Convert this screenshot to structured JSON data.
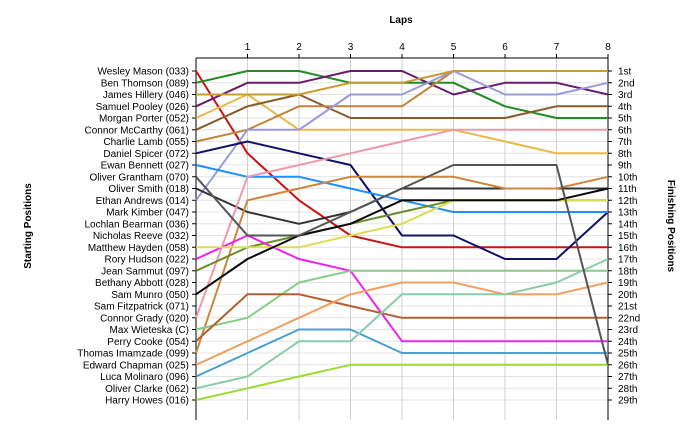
{
  "chart_data": {
    "type": "line",
    "title": "",
    "xlabel": "Laps",
    "ylabel_left": "Starting Positions",
    "ylabel_right": "Finishing Positions",
    "laps": [
      0,
      1,
      2,
      3,
      4,
      5,
      6,
      7,
      8
    ],
    "lap_labels": [
      "1",
      "2",
      "3",
      "4",
      "5",
      "6",
      "7",
      "8"
    ],
    "drivers": [
      "Wesley Mason (033)",
      "Ben Thomson (089)",
      "James Hillery (046)",
      "Samuel Pooley (026)",
      "Morgan Porter (052)",
      "Connor McCarthy (061)",
      "Charlie Lamb (055)",
      "Daniel Spicer (072)",
      "Ewan Bennett (027)",
      "Oliver Grantham (070)",
      "Oliver Smith (018)",
      "Ethan Andrews (014)",
      "Mark Kimber (047)",
      "Lochlan Bearman (036)",
      "Nicholas Reeve (032)",
      "Matthew Hayden (058)",
      "Rory Hudson (022)",
      "Jean Sammut (097)",
      "Bethany Abbott (028)",
      "Sam Munro (050)",
      "Sam Fitzpatrick (071)",
      "Connor Grady (020)",
      "Max Wieteska (C)",
      "Perry Cooke (054)",
      "Thomas Imamzade (099)",
      "Edward Chapman (025)",
      "Luca Molinaro (096)",
      "Oliver Clarke (062)",
      "Harry Howes (016)"
    ],
    "finishing_positions": [
      "1st",
      "2nd",
      "3rd",
      "4th",
      "5th",
      "6th",
      "7th",
      "8th",
      "9th",
      "10th",
      "11th",
      "12th",
      "13th",
      "14th",
      "15th",
      "16th",
      "17th",
      "18th",
      "19th",
      "20th",
      "21st",
      "22nd",
      "23rd",
      "24th",
      "25th",
      "26th",
      "27th",
      "28th",
      "29th"
    ],
    "series": [
      {
        "color": "#cc1111",
        "positions": [
          1,
          8,
          12,
          15,
          16,
          16,
          16,
          16,
          16
        ]
      },
      {
        "color": "#228b22",
        "positions": [
          2,
          1,
          1,
          2,
          2,
          2,
          4,
          5,
          5
        ]
      },
      {
        "color": "#6a1b6a",
        "positions": [
          4,
          2,
          2,
          1,
          1,
          3,
          2,
          2,
          3
        ]
      },
      {
        "color": "#e8b84a",
        "positions": [
          5,
          3,
          6,
          6,
          6,
          6,
          7,
          8,
          8
        ]
      },
      {
        "color": "#8b5a2b",
        "positions": [
          6,
          4,
          3,
          5,
          5,
          5,
          5,
          4,
          4
        ]
      },
      {
        "color": "#c0843a",
        "positions": [
          7,
          6,
          4,
          4,
          4,
          1,
          1,
          1,
          1
        ]
      },
      {
        "color": "#9999dd",
        "positions": [
          12,
          6,
          6,
          3,
          3,
          1,
          3,
          3,
          2
        ]
      },
      {
        "color": "#111166",
        "positions": [
          8,
          7,
          8,
          9,
          15,
          15,
          17,
          17,
          13
        ]
      },
      {
        "color": "#1e90ff",
        "positions": [
          9,
          10,
          10,
          11,
          12,
          13,
          13,
          13,
          13
        ]
      },
      {
        "color": "#333333",
        "positions": [
          11,
          13,
          14,
          13,
          11,
          11,
          11,
          11,
          11
        ]
      },
      {
        "color": "#ee99aa",
        "positions": [
          22,
          10,
          9,
          8,
          7,
          6,
          6,
          6,
          6
        ]
      },
      {
        "color": "#cd853f",
        "positions": [
          25,
          12,
          11,
          10,
          10,
          10,
          11,
          11,
          10
        ]
      },
      {
        "color": "#6a8f2a",
        "positions": [
          18,
          16,
          15,
          14,
          13,
          12,
          12,
          12,
          12
        ]
      },
      {
        "color": "#ee22ee",
        "positions": [
          17,
          15,
          17,
          18,
          24,
          24,
          24,
          24,
          24
        ]
      },
      {
        "color": "#dddd55",
        "positions": [
          16,
          16,
          16,
          15,
          14,
          12,
          12,
          12,
          12
        ]
      },
      {
        "color": "#0a0a0a",
        "positions": [
          20,
          17,
          15,
          14,
          12,
          12,
          12,
          12,
          11
        ]
      },
      {
        "color": "#88cc88",
        "positions": [
          23,
          22,
          19,
          18,
          18,
          18,
          18,
          18,
          18
        ]
      },
      {
        "color": "#b06030",
        "positions": [
          24,
          20,
          20,
          21,
          22,
          22,
          22,
          22,
          22
        ]
      },
      {
        "color": "#f0a060",
        "positions": [
          26,
          24,
          22,
          20,
          19,
          19,
          20,
          20,
          19
        ]
      },
      {
        "color": "#4aa0d0",
        "positions": [
          27,
          25,
          23,
          23,
          25,
          25,
          25,
          25,
          25
        ]
      },
      {
        "color": "#88ccaa",
        "positions": [
          28,
          27,
          24,
          24,
          20,
          20,
          20,
          19,
          17
        ]
      },
      {
        "color": "#99dd33",
        "positions": [
          29,
          28,
          27,
          26,
          26,
          26,
          26,
          26,
          26
        ]
      },
      {
        "color": "#555555",
        "positions": [
          10,
          15,
          15,
          13,
          11,
          9,
          9,
          9,
          26
        ]
      },
      {
        "color": "#cc9933",
        "positions": [
          3,
          3,
          3,
          2,
          2,
          1,
          1,
          1,
          1
        ]
      }
    ]
  }
}
